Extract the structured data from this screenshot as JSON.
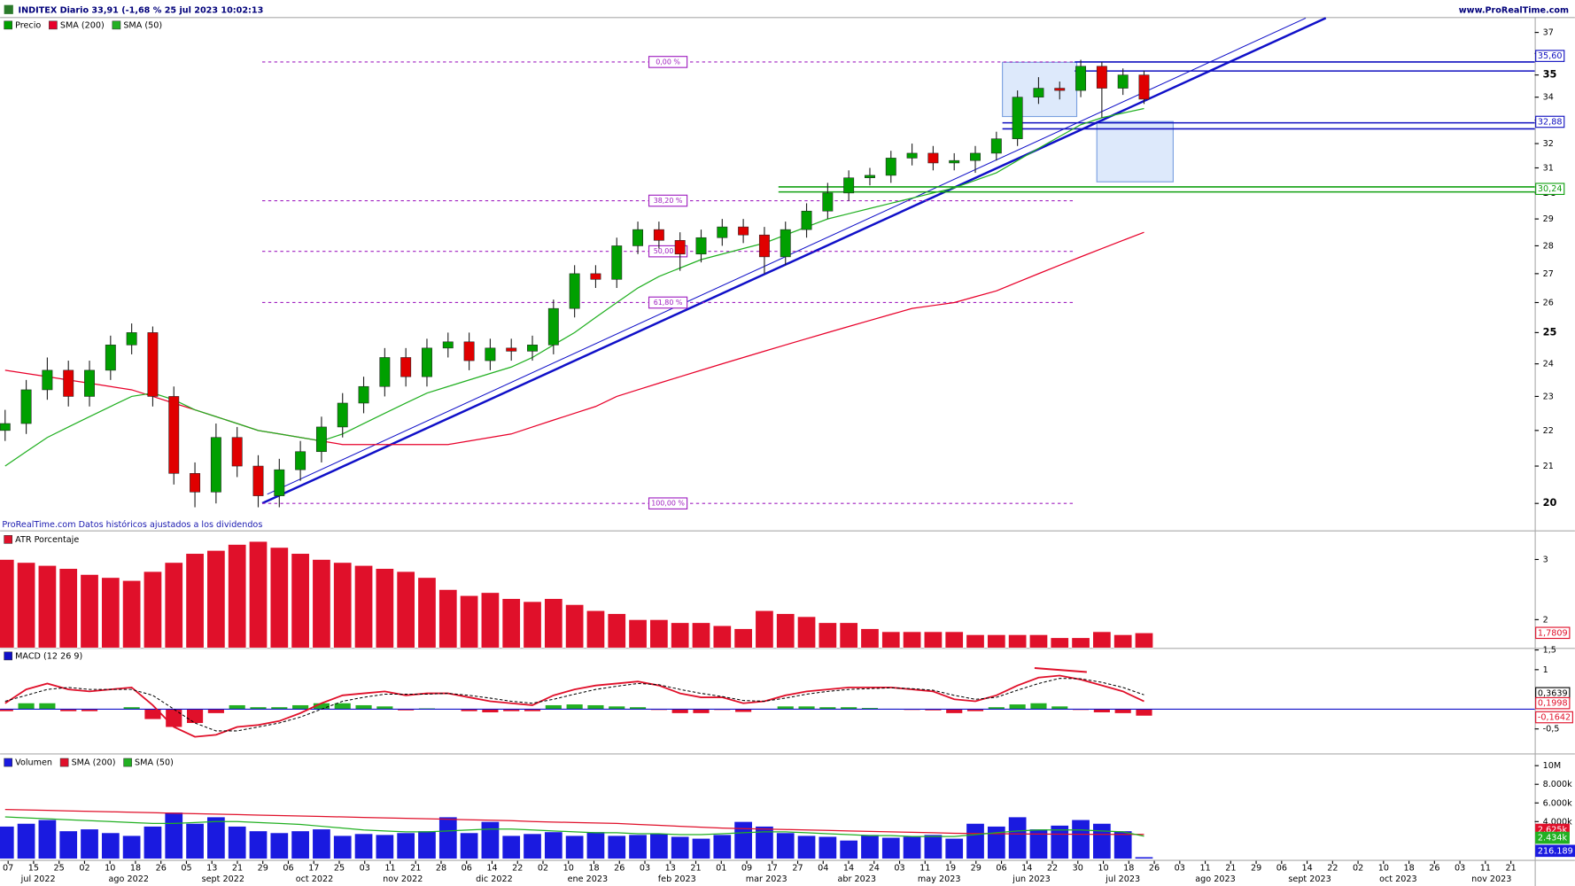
{
  "header": {
    "title": "INDITEX Diario 33,91 (-1,68 % 25 jul 2023 10:02:13",
    "site": "www.ProRealTime.com",
    "note": "ProRealTime.com Datos históricos ajustados a los dividendos"
  },
  "x_axis": {
    "days": [
      "07",
      "15",
      "25",
      "02",
      "10",
      "18",
      "26",
      "05",
      "13",
      "21",
      "29",
      "06",
      "17",
      "25",
      "03",
      "11",
      "21",
      "28",
      "06",
      "14",
      "22",
      "02",
      "10",
      "18",
      "26",
      "03",
      "13",
      "21",
      "01",
      "09",
      "17",
      "27",
      "04",
      "14",
      "24",
      "03",
      "11",
      "19",
      "29",
      "06",
      "14",
      "22",
      "30",
      "10",
      "18",
      "26",
      "03",
      "11",
      "21",
      "29",
      "06",
      "14",
      "22",
      "02",
      "10",
      "18",
      "26",
      "03",
      "11",
      "21"
    ],
    "months": [
      "jul 2022",
      "ago 2022",
      "sept 2022",
      "oct 2022",
      "nov 2022",
      "dic 2022",
      "ene 2023",
      "feb 2023",
      "mar 2023",
      "abr 2023",
      "may 2023",
      "jun 2023",
      "jul 2023",
      "ago 2023",
      "sept 2023",
      "oct 2023",
      "nov 2023"
    ]
  },
  "chart_data": [
    {
      "type": "candlestick",
      "name": "Precio",
      "up_color": "#00a000",
      "down_color": "#e00000",
      "log": true,
      "ylim": [
        19.64,
        37.7
      ],
      "yticks": [
        20,
        21,
        22,
        23,
        24,
        25,
        26,
        27,
        28,
        29,
        30,
        31,
        32,
        33,
        34,
        35,
        36,
        37
      ],
      "ohlc": [
        [
          22.0,
          22.6,
          21.7,
          22.2
        ],
        [
          22.2,
          23.5,
          21.9,
          23.2
        ],
        [
          23.2,
          24.2,
          22.9,
          23.8
        ],
        [
          23.8,
          24.1,
          22.7,
          23.0
        ],
        [
          23.0,
          24.1,
          22.7,
          23.8
        ],
        [
          23.8,
          24.9,
          23.5,
          24.6
        ],
        [
          24.6,
          25.3,
          24.3,
          25.0
        ],
        [
          25.0,
          25.2,
          22.7,
          23.0
        ],
        [
          23.0,
          23.3,
          20.5,
          20.8
        ],
        [
          20.8,
          21.1,
          19.9,
          20.3
        ],
        [
          20.3,
          22.2,
          20.0,
          21.8
        ],
        [
          21.8,
          22.1,
          20.7,
          21.0
        ],
        [
          21.0,
          21.3,
          19.9,
          20.2
        ],
        [
          20.2,
          21.2,
          19.9,
          20.9
        ],
        [
          20.9,
          21.7,
          20.6,
          21.4
        ],
        [
          21.4,
          22.4,
          21.1,
          22.1
        ],
        [
          22.1,
          23.1,
          21.8,
          22.8
        ],
        [
          22.8,
          23.6,
          22.5,
          23.3
        ],
        [
          23.3,
          24.5,
          23.0,
          24.2
        ],
        [
          24.2,
          24.5,
          23.3,
          23.6
        ],
        [
          23.6,
          24.8,
          23.3,
          24.5
        ],
        [
          24.5,
          25.0,
          24.2,
          24.7
        ],
        [
          24.7,
          25.0,
          23.8,
          24.1
        ],
        [
          24.1,
          24.8,
          23.8,
          24.5
        ],
        [
          24.5,
          24.8,
          24.1,
          24.4
        ],
        [
          24.4,
          24.9,
          24.1,
          24.6
        ],
        [
          24.6,
          26.1,
          24.3,
          25.8
        ],
        [
          25.8,
          27.3,
          25.5,
          27.0
        ],
        [
          27.0,
          27.3,
          26.5,
          26.8
        ],
        [
          26.8,
          28.3,
          26.5,
          28.0
        ],
        [
          28.0,
          28.9,
          27.7,
          28.6
        ],
        [
          28.6,
          28.9,
          27.9,
          28.2
        ],
        [
          28.2,
          28.5,
          27.1,
          27.7
        ],
        [
          27.7,
          28.6,
          27.4,
          28.3
        ],
        [
          28.3,
          29.0,
          28.0,
          28.7
        ],
        [
          28.7,
          29.0,
          28.1,
          28.4
        ],
        [
          28.4,
          28.7,
          27.0,
          27.6
        ],
        [
          27.6,
          28.9,
          27.3,
          28.6
        ],
        [
          28.6,
          29.6,
          28.3,
          29.3
        ],
        [
          29.3,
          30.4,
          29.0,
          30.0
        ],
        [
          30.0,
          30.9,
          29.7,
          30.6
        ],
        [
          30.6,
          31.0,
          30.3,
          30.7
        ],
        [
          30.7,
          31.7,
          30.4,
          31.4
        ],
        [
          31.4,
          32.0,
          31.1,
          31.6
        ],
        [
          31.6,
          31.9,
          30.9,
          31.2
        ],
        [
          31.2,
          31.6,
          30.9,
          31.3
        ],
        [
          31.3,
          31.9,
          30.8,
          31.6
        ],
        [
          31.6,
          32.5,
          31.3,
          32.2
        ],
        [
          32.2,
          34.3,
          31.9,
          34.0
        ],
        [
          34.0,
          34.9,
          33.7,
          34.4
        ],
        [
          34.4,
          34.7,
          33.9,
          34.3
        ],
        [
          34.3,
          35.7,
          34.0,
          35.4
        ],
        [
          35.4,
          35.6,
          33.1,
          34.4
        ],
        [
          34.4,
          35.3,
          34.1,
          35.0
        ],
        [
          35.0,
          35.2,
          33.7,
          33.91
        ]
      ],
      "series": [
        {
          "name": "SMA (200)",
          "color": "#e8002a",
          "values": [
            23.8,
            23.7,
            23.6,
            23.5,
            23.4,
            23.3,
            23.2,
            23.0,
            22.8,
            22.6,
            22.4,
            22.2,
            22.0,
            21.9,
            21.8,
            21.7,
            21.6,
            21.6,
            21.6,
            21.6,
            21.6,
            21.6,
            21.7,
            21.8,
            21.9,
            22.1,
            22.3,
            22.5,
            22.7,
            23.0,
            23.2,
            23.4,
            23.6,
            23.8,
            24.0,
            24.2,
            24.4,
            24.6,
            24.8,
            25.0,
            25.2,
            25.4,
            25.6,
            25.8,
            25.9,
            26.0,
            26.2,
            26.4,
            26.7,
            27.0,
            27.3,
            27.6,
            27.9,
            28.2,
            28.5
          ]
        },
        {
          "name": "SMA (50)",
          "color": "#22b022",
          "values": [
            21.0,
            21.4,
            21.8,
            22.1,
            22.4,
            22.7,
            23.0,
            23.1,
            22.9,
            22.6,
            22.4,
            22.2,
            22.0,
            21.9,
            21.8,
            21.7,
            21.9,
            22.2,
            22.5,
            22.8,
            23.1,
            23.3,
            23.5,
            23.7,
            23.9,
            24.2,
            24.6,
            25.0,
            25.5,
            26.0,
            26.5,
            26.9,
            27.2,
            27.5,
            27.7,
            27.9,
            28.1,
            28.4,
            28.7,
            29.0,
            29.2,
            29.4,
            29.6,
            29.8,
            30.0,
            30.2,
            30.5,
            30.8,
            31.3,
            31.8,
            32.3,
            32.8,
            33.1,
            33.3,
            33.5
          ]
        }
      ],
      "fib": [
        {
          "value": 35.6,
          "label": "0,00 %"
        },
        {
          "value": 29.7,
          "label": "38,20 %"
        },
        {
          "value": 27.8,
          "label": "50,00 %"
        },
        {
          "value": 26.0,
          "label": "61,80 %"
        },
        {
          "value": 20.0,
          "label": "100,00 %"
        }
      ],
      "fib_color": "#a020c0",
      "levels": [
        {
          "value": 35.6,
          "label": "35,60",
          "color": "#1010c0"
        },
        {
          "value": 32.88,
          "label": "32,88",
          "color": "#1010c0"
        },
        {
          "value": 30.24,
          "label": "30,24",
          "color": "#10a010"
        }
      ]
    },
    {
      "type": "bar",
      "name": "ATR Porcentaje",
      "color": "#e0102a",
      "ylim": [
        1.53,
        3.45
      ],
      "yticks": [
        2,
        3
      ],
      "last_label": "1,7809",
      "values": [
        3.0,
        2.95,
        2.9,
        2.85,
        2.75,
        2.7,
        2.65,
        2.8,
        2.95,
        3.1,
        3.15,
        3.25,
        3.3,
        3.2,
        3.1,
        3.0,
        2.95,
        2.9,
        2.85,
        2.8,
        2.7,
        2.5,
        2.4,
        2.45,
        2.35,
        2.3,
        2.35,
        2.25,
        2.15,
        2.1,
        2.0,
        2.0,
        1.95,
        1.95,
        1.9,
        1.85,
        2.15,
        2.1,
        2.05,
        1.95,
        1.95,
        1.85,
        1.8,
        1.8,
        1.8,
        1.8,
        1.75,
        1.75,
        1.75,
        1.75,
        1.7,
        1.7,
        1.8,
        1.75,
        1.7809
      ]
    },
    {
      "type": "macd",
      "name": "MACD (12 26 9)",
      "ylim": [
        -1.12,
        1.5
      ],
      "yticks": [
        {
          "value": 1.5,
          "label": "1,5"
        },
        1,
        {
          "value": -0.5,
          "label": "-0,5"
        }
      ],
      "series": [
        {
          "color": "#e0102a",
          "last_label": "0,1998",
          "values": [
            0.15,
            0.5,
            0.65,
            0.5,
            0.45,
            0.5,
            0.55,
            0.1,
            -0.45,
            -0.7,
            -0.65,
            -0.45,
            -0.4,
            -0.3,
            -0.1,
            0.15,
            0.35,
            0.4,
            0.45,
            0.35,
            0.4,
            0.4,
            0.3,
            0.2,
            0.15,
            0.1,
            0.35,
            0.5,
            0.6,
            0.65,
            0.7,
            0.6,
            0.4,
            0.3,
            0.3,
            0.15,
            0.2,
            0.35,
            0.45,
            0.5,
            0.55,
            0.55,
            0.55,
            0.5,
            0.45,
            0.25,
            0.2,
            0.35,
            0.6,
            0.8,
            0.85,
            0.75,
            0.6,
            0.45,
            0.1998
          ]
        },
        {
          "color": "#000000",
          "last_label": "0,3639",
          "values": [
            0.2,
            0.35,
            0.5,
            0.55,
            0.5,
            0.5,
            0.5,
            0.35,
            0.0,
            -0.35,
            -0.55,
            -0.55,
            -0.45,
            -0.35,
            -0.2,
            0.0,
            0.2,
            0.3,
            0.38,
            0.38,
            0.38,
            0.4,
            0.35,
            0.28,
            0.2,
            0.15,
            0.25,
            0.38,
            0.5,
            0.58,
            0.65,
            0.62,
            0.5,
            0.4,
            0.32,
            0.22,
            0.2,
            0.28,
            0.38,
            0.45,
            0.5,
            0.52,
            0.54,
            0.52,
            0.48,
            0.35,
            0.25,
            0.3,
            0.48,
            0.65,
            0.78,
            0.77,
            0.68,
            0.55,
            0.3639
          ]
        }
      ],
      "histogram": {
        "up_color": "#22b022",
        "down_color": "#e0102a",
        "last_label": "-0,1642",
        "values": [
          -0.05,
          0.15,
          0.15,
          -0.05,
          -0.05,
          0,
          0.05,
          -0.25,
          -0.45,
          -0.35,
          -0.1,
          0.1,
          0.05,
          0.05,
          0.1,
          0.15,
          0.15,
          0.1,
          0.07,
          -0.03,
          0.02,
          0,
          -0.05,
          -0.08,
          -0.05,
          -0.05,
          0.1,
          0.12,
          0.1,
          0.07,
          0.05,
          -0.02,
          -0.1,
          -0.1,
          -0.02,
          -0.07,
          0,
          0.07,
          0.07,
          0.05,
          0.05,
          0.03,
          0.01,
          -0.02,
          -0.03,
          -0.1,
          -0.05,
          0.05,
          0.12,
          0.15,
          0.07,
          -0.02,
          -0.08,
          -0.1,
          -0.1642
        ]
      }
    },
    {
      "type": "bar",
      "name": "Volumen",
      "color": "#1a1ae0",
      "ylim": [
        0,
        11100
      ],
      "yticks": [
        {
          "value": 10000,
          "label": "10M"
        },
        {
          "value": 8000,
          "label": "8.000k"
        },
        {
          "value": 6000,
          "label": "6.000k"
        },
        {
          "value": 4000,
          "label": "4.000k"
        }
      ],
      "last_label": "216.189",
      "values": [
        3500,
        3800,
        4200,
        3000,
        3200,
        2800,
        2500,
        3500,
        5000,
        3800,
        4500,
        3500,
        3000,
        2800,
        3000,
        3200,
        2500,
        2700,
        2600,
        2800,
        3000,
        4500,
        2800,
        4000,
        2500,
        2700,
        2900,
        2500,
        2900,
        2500,
        2600,
        2700,
        2400,
        2200,
        2600,
        4000,
        3500,
        2800,
        2500,
        2400,
        2000,
        2600,
        2300,
        2400,
        2600,
        2200,
        3800,
        3500,
        4500,
        3200,
        3600,
        4200,
        3800,
        3000,
        216.189
      ],
      "series": [
        {
          "name": "SMA (200)",
          "color": "#e0102a",
          "last_label": "2.625k",
          "values": [
            5300,
            5250,
            5200,
            5150,
            5100,
            5050,
            5000,
            4950,
            4900,
            4850,
            4800,
            4750,
            4700,
            4650,
            4600,
            4550,
            4500,
            4450,
            4400,
            4350,
            4300,
            4250,
            4200,
            4150,
            4100,
            4000,
            3950,
            3900,
            3850,
            3800,
            3700,
            3600,
            3500,
            3400,
            3300,
            3250,
            3200,
            3150,
            3100,
            3050,
            3000,
            2950,
            2900,
            2850,
            2800,
            2750,
            2720,
            2700,
            2680,
            2660,
            2650,
            2640,
            2630,
            2630,
            2625
          ]
        },
        {
          "name": "SMA (50)",
          "color": "#22b022",
          "last_label": "2.434k",
          "values": [
            4500,
            4400,
            4300,
            4200,
            4100,
            4000,
            3900,
            3800,
            3800,
            3900,
            4000,
            4000,
            3900,
            3800,
            3700,
            3500,
            3300,
            3100,
            3000,
            2900,
            2900,
            3000,
            3100,
            3200,
            3200,
            3100,
            3000,
            2900,
            2800,
            2800,
            2700,
            2700,
            2600,
            2600,
            2700,
            2800,
            2900,
            2900,
            2800,
            2700,
            2600,
            2500,
            2500,
            2400,
            2400,
            2400,
            2600,
            2800,
            3000,
            3100,
            3100,
            3100,
            3000,
            2900,
            2434
          ]
        }
      ]
    }
  ]
}
